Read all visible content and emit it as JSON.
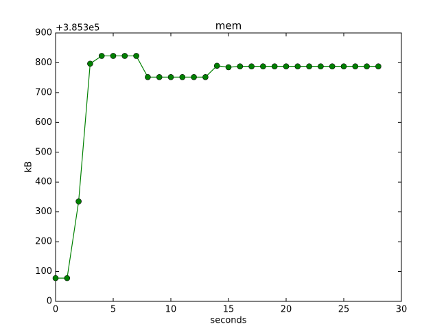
{
  "chart_data": {
    "type": "line",
    "title": "mem",
    "xlabel": "seconds",
    "ylabel": "kB",
    "offset_text": "+3.853e5",
    "x": [
      0,
      1,
      2,
      3,
      4,
      5,
      6,
      7,
      8,
      9,
      10,
      11,
      12,
      13,
      14,
      15,
      16,
      17,
      18,
      19,
      20,
      21,
      22,
      23,
      24,
      25,
      26,
      27,
      28
    ],
    "values": [
      78,
      78,
      335,
      797,
      823,
      823,
      823,
      823,
      752,
      752,
      752,
      752,
      752,
      752,
      790,
      785,
      788,
      788,
      788,
      788,
      788,
      788,
      788,
      788,
      788,
      788,
      788,
      788,
      788
    ],
    "color": "#008000",
    "xlim": [
      0,
      30
    ],
    "xticks": [
      0,
      5,
      10,
      15,
      20,
      25,
      30
    ],
    "ylim": [
      0,
      900
    ],
    "yticks": [
      0,
      100,
      200,
      300,
      400,
      500,
      600,
      700,
      800,
      900
    ],
    "grid": false
  }
}
